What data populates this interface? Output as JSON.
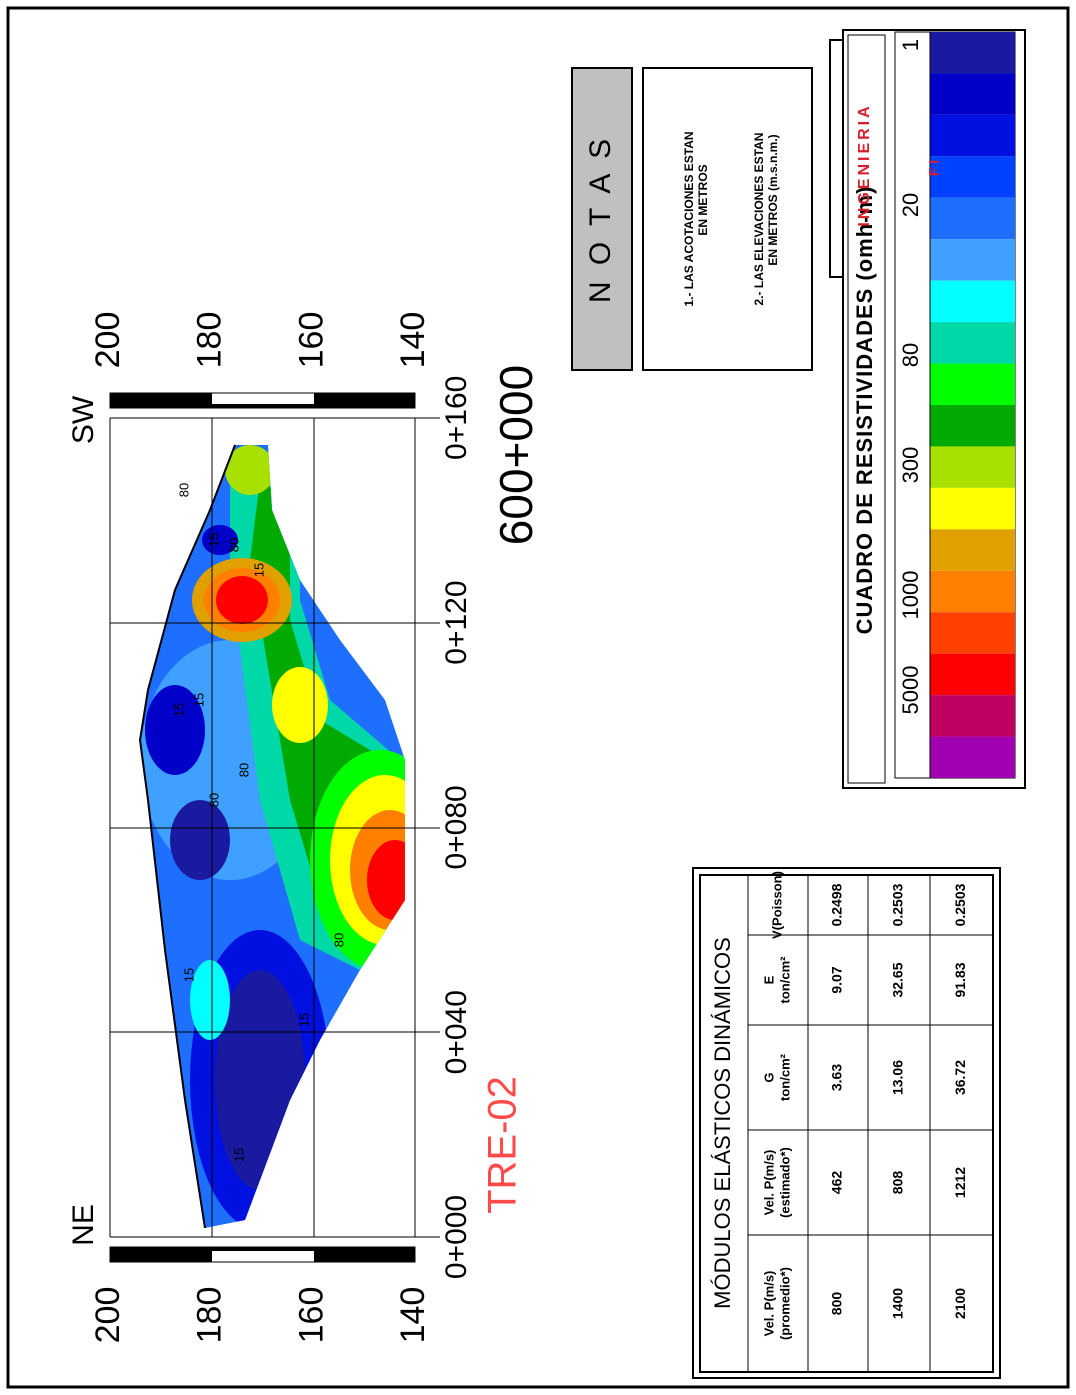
{
  "section": {
    "title": "TRE-02",
    "subtitle": "600+000",
    "left_label": "NE",
    "right_label": "SW",
    "elevation_ticks": [
      "200",
      "180",
      "160",
      "140"
    ],
    "station_ticks": [
      "0+000",
      "0+040",
      "0+080",
      "0+120",
      "0+160"
    ],
    "contour_labels": [
      "15",
      "15",
      "80",
      "15",
      "80",
      "15",
      "15",
      "80",
      "15",
      "80",
      "80",
      "15"
    ]
  },
  "notes": {
    "title": "N O T A S",
    "items": [
      [
        "1.- LAS ACOTACIONES ESTAN",
        "EN METROS"
      ],
      [
        "2.- LAS ELEVACIONES ESTAN",
        "EN METROS (m.s.n.m.)"
      ]
    ]
  },
  "legend": {
    "title": "CUADRO DE RESISTIVIDADES (omh-m)",
    "labels": [
      "1",
      "20",
      "80",
      "300",
      "1000",
      "5000"
    ],
    "colors": [
      "#1a1aa0",
      "#0000c8",
      "#0010e0",
      "#0040ff",
      "#1f6fff",
      "#3fa0ff",
      "#00ffff",
      "#00d8a8",
      "#00ff00",
      "#00aa00",
      "#a8e000",
      "#ffff00",
      "#e0a000",
      "#ff8000",
      "#ff4000",
      "#ff0000",
      "#c00060",
      "#a000b0"
    ]
  },
  "logo": {
    "text": "INGENIERIA",
    "letters": "F I"
  },
  "table": {
    "title": "MÓDULOS ELÁSTICOS DINÁMICOS",
    "headers": [
      [
        "Vel. P(m/s)",
        "(promedio*)"
      ],
      [
        "Vel. P(m/s)",
        "(estimado*)"
      ],
      [
        "G",
        "ton/cm²"
      ],
      [
        "E",
        "ton/cm²"
      ],
      [
        "V(Poisson)"
      ]
    ],
    "rows": [
      [
        "800",
        "462",
        "3.63",
        "9.07",
        "0.2498"
      ],
      [
        "1400",
        "808",
        "13.06",
        "32.65",
        "0.2503"
      ],
      [
        "2100",
        "1212",
        "36.72",
        "91.83",
        "0.2503"
      ]
    ]
  }
}
